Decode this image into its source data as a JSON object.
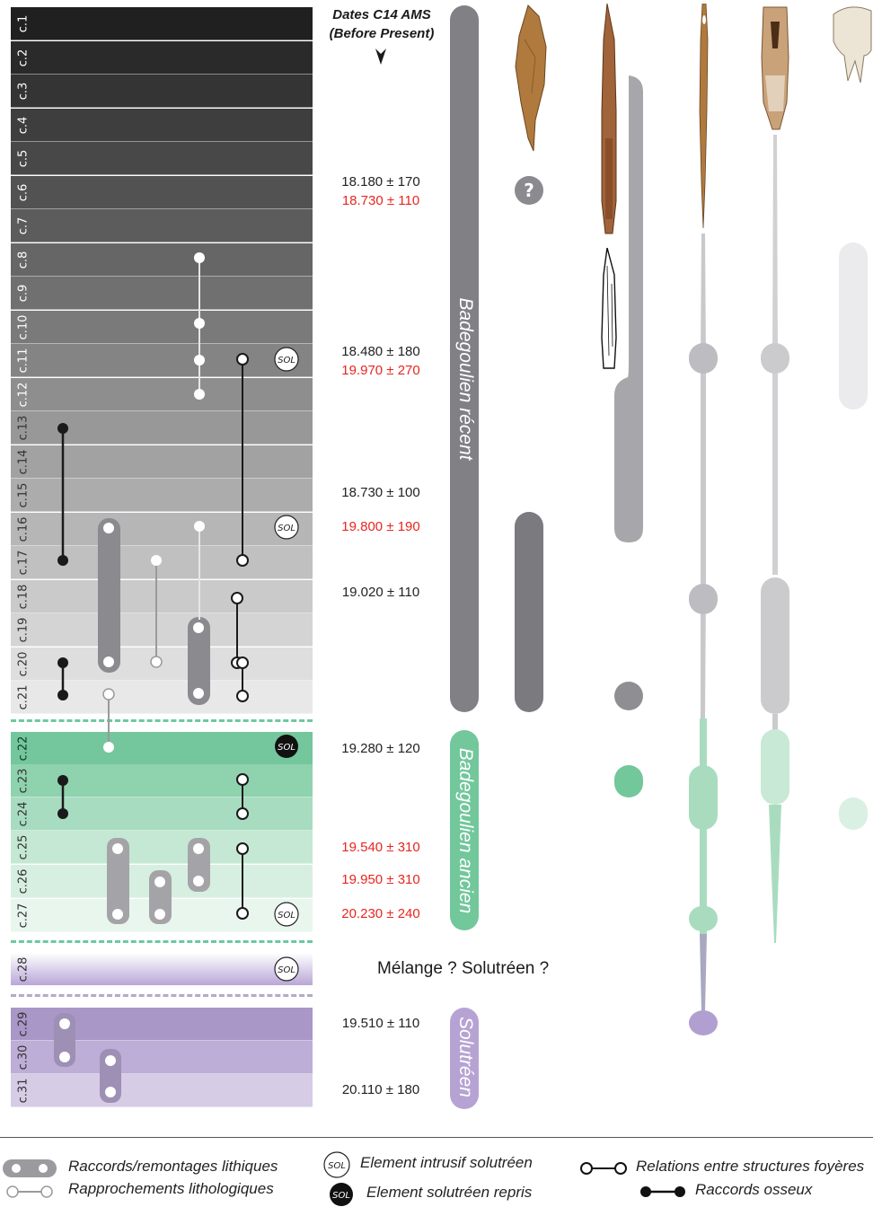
{
  "header": {
    "title_line1": "Dates C14 AMS",
    "title_line2": "(Before Present)"
  },
  "layers": [
    "c.1",
    "c.2",
    "c.3",
    "c.4",
    "c.5",
    "c.6",
    "c.7",
    "c.8",
    "c.9",
    "c.10",
    "c.11",
    "c.12",
    "c.13",
    "c.14",
    "c.15",
    "c.16",
    "c.17",
    "c.18",
    "c.19",
    "c.20",
    "c.21",
    "c.22",
    "c.23",
    "c.24",
    "c.25",
    "c.26",
    "c.27",
    "c.28",
    "c.29",
    "c.30",
    "c.31"
  ],
  "dates": [
    {
      "text": "18.180 ± 170",
      "color": "#222222"
    },
    {
      "text": "18.730 ± 110",
      "color": "#e8261f"
    },
    {
      "text": "18.480 ± 180",
      "color": "#222222"
    },
    {
      "text": "19.970 ± 270",
      "color": "#e8261f"
    },
    {
      "text": "18.730 ± 100",
      "color": "#222222"
    },
    {
      "text": "19.800 ± 190",
      "color": "#e8261f"
    },
    {
      "text": "19.020 ± 110",
      "color": "#222222"
    },
    {
      "text": "19.280 ± 120",
      "color": "#222222"
    },
    {
      "text": "19.540 ± 310",
      "color": "#e8261f"
    },
    {
      "text": "19.950 ± 310",
      "color": "#e8261f"
    },
    {
      "text": "20.230 ± 240",
      "color": "#e8261f"
    },
    {
      "text": "19.510 ± 110",
      "color": "#222222"
    },
    {
      "text": "20.110 ± 180",
      "color": "#222222"
    }
  ],
  "periods": {
    "recent": "Badegoulien récent",
    "ancien": "Badegoulien ancien",
    "solutreen": "Solutréen"
  },
  "sol_badges": [
    "SOL",
    "SOL",
    "SOL",
    "SOL",
    "SOL"
  ],
  "melange": "Mélange ? Solutréen ?",
  "question_mark": "?",
  "legend": {
    "lithic_refits": "Raccords/remontages lithiques",
    "lithologic": "Rapprochements lithologiques",
    "intrusive_sol": "Element intrusif solutréen",
    "reused_sol": "Element solutréen repris",
    "hearth_relations": "Relations entre structures foyères",
    "bone_refits": "Raccords osseux",
    "sol_badge": "SOL"
  },
  "artifact_icons": [
    "flint-tool-icon",
    "bone-point-icon",
    "needle-icon",
    "worked-bone-icon",
    "tooth-icon"
  ],
  "colors": {
    "recent_bar": "#808085",
    "ancien_bar": "#72c79b",
    "solutreen_bar": "#b7a3d3",
    "red_date": "#e8261f"
  }
}
